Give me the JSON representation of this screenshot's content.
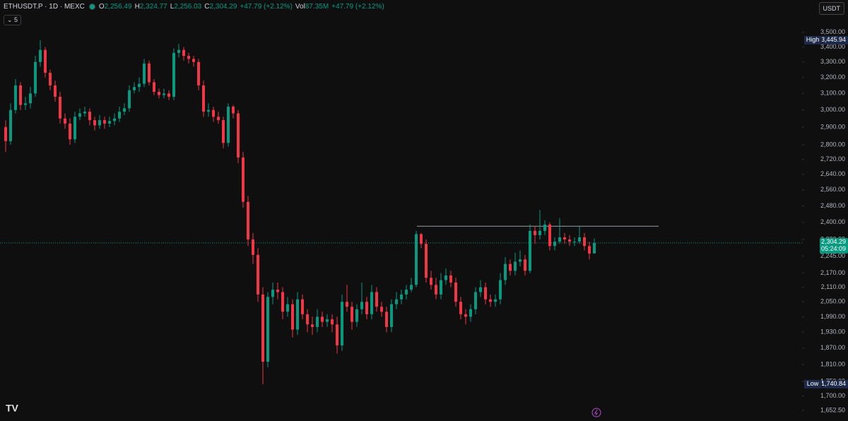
{
  "header": {
    "symbol": "ETHUSDT.P · 1D · MEXC",
    "open_label": "O",
    "open": "2,256.49",
    "high_label": "H",
    "high": "2,324.77",
    "low_label": "L",
    "low": "2,256.03",
    "close_label": "C",
    "close": "2,304.29",
    "change": "+47.79 (+2.12%)",
    "vol_label": "Vol",
    "vol": "87.35M",
    "vol_change": "+47.79 (+2.12%)",
    "collapsed_count": "5",
    "currency": "USDT"
  },
  "chart_data": {
    "type": "candlestick",
    "up_color": "#089981",
    "down_color": "#f23645",
    "log_scale": true,
    "ylim": [
      1618,
      3732
    ],
    "yticks": [
      {
        "value": 3500,
        "label": "3,500.00"
      },
      {
        "value": 3400,
        "label": "3,400.00"
      },
      {
        "value": 3300,
        "label": "3,300.00"
      },
      {
        "value": 3200,
        "label": "3,200.00"
      },
      {
        "value": 3100,
        "label": "3,100.00"
      },
      {
        "value": 3000,
        "label": "3,000.00"
      },
      {
        "value": 2900,
        "label": "2,900.00"
      },
      {
        "value": 2800,
        "label": "2,800.00"
      },
      {
        "value": 2720,
        "label": "2,720.00"
      },
      {
        "value": 2640,
        "label": "2,640.00"
      },
      {
        "value": 2560,
        "label": "2,560.00"
      },
      {
        "value": 2480,
        "label": "2,480.00"
      },
      {
        "value": 2400,
        "label": "2,400.00"
      },
      {
        "value": 2320,
        "label": "2,320.00"
      },
      {
        "value": 2245,
        "label": "2,245.00"
      },
      {
        "value": 2170,
        "label": "2,170.00"
      },
      {
        "value": 2110,
        "label": "2,110.00"
      },
      {
        "value": 2050,
        "label": "2,050.00"
      },
      {
        "value": 1990,
        "label": "1,990.00"
      },
      {
        "value": 1930,
        "label": "1,930.00"
      },
      {
        "value": 1870,
        "label": "1,870.00"
      },
      {
        "value": 1810,
        "label": "1,810.00"
      },
      {
        "value": 1750,
        "label": "1,750.00"
      },
      {
        "value": 1700,
        "label": "1,700.00"
      },
      {
        "value": 1652.5,
        "label": "1,652.50"
      }
    ],
    "high_label": "High",
    "high_value": {
      "value": 3445.94,
      "label": "3,445.94"
    },
    "low_label": "Low",
    "low_value": {
      "value": 1740.84,
      "label": "1,740.84"
    },
    "last_price": {
      "value": 2304.29,
      "label": "2,304.29"
    },
    "countdown": "05:24:09",
    "level": 2382,
    "candles": [
      [
        2900,
        2940,
        2760,
        2820
      ],
      [
        2820,
        3040,
        2800,
        3000
      ],
      [
        3000,
        3190,
        2980,
        3150
      ],
      [
        3150,
        3170,
        3000,
        3030
      ],
      [
        3030,
        3080,
        3000,
        3040
      ],
      [
        3040,
        3140,
        3010,
        3100
      ],
      [
        3100,
        3340,
        3080,
        3300
      ],
      [
        3300,
        3445.94,
        3270,
        3380
      ],
      [
        3380,
        3400,
        3200,
        3230
      ],
      [
        3230,
        3250,
        3120,
        3150
      ],
      [
        3150,
        3180,
        3050,
        3080
      ],
      [
        3080,
        3110,
        2920,
        2950
      ],
      [
        2950,
        2980,
        2890,
        2920
      ],
      [
        2920,
        2950,
        2800,
        2830
      ],
      [
        2830,
        2990,
        2810,
        2960
      ],
      [
        2960,
        3010,
        2940,
        2980
      ],
      [
        2980,
        3020,
        2960,
        2990
      ],
      [
        2990,
        3010,
        2910,
        2940
      ],
      [
        2940,
        2960,
        2880,
        2910
      ],
      [
        2910,
        2970,
        2890,
        2940
      ],
      [
        2940,
        2960,
        2890,
        2920
      ],
      [
        2920,
        2960,
        2900,
        2935
      ],
      [
        2935,
        2980,
        2910,
        2950
      ],
      [
        2950,
        3020,
        2930,
        2990
      ],
      [
        2990,
        3040,
        2970,
        3010
      ],
      [
        3010,
        3150,
        2990,
        3120
      ],
      [
        3120,
        3170,
        3100,
        3140
      ],
      [
        3140,
        3200,
        3110,
        3160
      ],
      [
        3160,
        3320,
        3140,
        3290
      ],
      [
        3290,
        3310,
        3150,
        3170
      ],
      [
        3170,
        3190,
        3090,
        3110
      ],
      [
        3110,
        3130,
        3070,
        3090
      ],
      [
        3090,
        3130,
        3070,
        3100
      ],
      [
        3100,
        3120,
        3060,
        3080
      ],
      [
        3080,
        3390,
        3060,
        3360
      ],
      [
        3360,
        3420,
        3330,
        3380
      ],
      [
        3380,
        3400,
        3310,
        3340
      ],
      [
        3340,
        3360,
        3290,
        3320
      ],
      [
        3320,
        3340,
        3270,
        3300
      ],
      [
        3300,
        3320,
        3120,
        3150
      ],
      [
        3150,
        3180,
        2960,
        2990
      ],
      [
        2990,
        3040,
        2960,
        3000
      ],
      [
        3000,
        3020,
        2930,
        2960
      ],
      [
        2960,
        2990,
        2920,
        2940
      ],
      [
        2940,
        2960,
        2780,
        2810
      ],
      [
        2810,
        3040,
        2790,
        3020
      ],
      [
        3020,
        3030,
        2950,
        2980
      ],
      [
        2980,
        3000,
        2700,
        2730
      ],
      [
        2730,
        2760,
        2470,
        2500
      ],
      [
        2500,
        2530,
        2290,
        2320
      ],
      [
        2320,
        2350,
        2210,
        2250
      ],
      [
        2250,
        2280,
        2050,
        2080
      ],
      [
        2080,
        2110,
        1740.84,
        1820
      ],
      [
        1820,
        2090,
        1800,
        2070
      ],
      [
        2070,
        2130,
        2040,
        2100
      ],
      [
        2100,
        2130,
        2060,
        2090
      ],
      [
        2090,
        2110,
        1980,
        2010
      ],
      [
        2010,
        2070,
        1990,
        2040
      ],
      [
        2040,
        2060,
        1910,
        1940
      ],
      [
        1940,
        2090,
        1920,
        2060
      ],
      [
        2060,
        2080,
        1980,
        2000
      ],
      [
        2000,
        2020,
        1930,
        1960
      ],
      [
        1960,
        1990,
        1920,
        1950
      ],
      [
        1950,
        2020,
        1930,
        1990
      ],
      [
        1990,
        2010,
        1950,
        1970
      ],
      [
        1970,
        2000,
        1950,
        1980
      ],
      [
        1980,
        2000,
        1930,
        1960
      ],
      [
        1960,
        1990,
        1850,
        1880
      ],
      [
        1880,
        2080,
        1860,
        2050
      ],
      [
        2050,
        2120,
        2010,
        2030
      ],
      [
        2030,
        2050,
        1940,
        1970
      ],
      [
        1970,
        2040,
        1950,
        2020
      ],
      [
        2020,
        2130,
        2000,
        2050
      ],
      [
        2050,
        2070,
        1980,
        2000
      ],
      [
        2000,
        2120,
        1980,
        2090
      ],
      [
        2090,
        2110,
        2010,
        2030
      ],
      [
        2030,
        2050,
        1990,
        2010
      ],
      [
        2010,
        2030,
        1930,
        1950
      ],
      [
        1950,
        2060,
        1930,
        2040
      ],
      [
        2040,
        2090,
        2020,
        2060
      ],
      [
        2060,
        2100,
        2040,
        2080
      ],
      [
        2080,
        2120,
        2060,
        2100
      ],
      [
        2100,
        2150,
        2090,
        2120
      ],
      [
        2120,
        2360,
        2110,
        2345
      ],
      [
        2345,
        2350,
        2280,
        2300
      ],
      [
        2300,
        2320,
        2130,
        2150
      ],
      [
        2150,
        2180,
        2100,
        2120
      ],
      [
        2120,
        2150,
        2060,
        2080
      ],
      [
        2080,
        2170,
        2060,
        2140
      ],
      [
        2140,
        2190,
        2120,
        2160
      ],
      [
        2160,
        2180,
        2110,
        2130
      ],
      [
        2130,
        2150,
        2030,
        2050
      ],
      [
        2050,
        2070,
        1980,
        2000
      ],
      [
        2000,
        2020,
        1960,
        1990
      ],
      [
        1990,
        2040,
        1970,
        2020
      ],
      [
        2020,
        2110,
        2000,
        2090
      ],
      [
        2090,
        2140,
        2070,
        2110
      ],
      [
        2110,
        2130,
        2040,
        2060
      ],
      [
        2060,
        2080,
        2030,
        2050
      ],
      [
        2050,
        2080,
        2030,
        2060
      ],
      [
        2060,
        2170,
        2040,
        2140
      ],
      [
        2140,
        2240,
        2120,
        2210
      ],
      [
        2210,
        2230,
        2160,
        2180
      ],
      [
        2180,
        2260,
        2160,
        2220
      ],
      [
        2220,
        2270,
        2200,
        2230
      ],
      [
        2230,
        2250,
        2160,
        2180
      ],
      [
        2180,
        2390,
        2170,
        2360
      ],
      [
        2360,
        2380,
        2300,
        2340
      ],
      [
        2340,
        2460,
        2320,
        2360
      ],
      [
        2360,
        2410,
        2340,
        2390
      ],
      [
        2390,
        2400,
        2270,
        2290
      ],
      [
        2290,
        2330,
        2270,
        2310
      ],
      [
        2310,
        2420,
        2300,
        2330
      ],
      [
        2330,
        2350,
        2300,
        2320
      ],
      [
        2320,
        2340,
        2290,
        2310
      ],
      [
        2310,
        2330,
        2290,
        2310
      ],
      [
        2310,
        2380,
        2300,
        2330
      ],
      [
        2330,
        2350,
        2270,
        2290
      ],
      [
        2290,
        2310,
        2230,
        2256
      ],
      [
        2256.49,
        2324.77,
        2256.03,
        2304.29
      ]
    ]
  }
}
